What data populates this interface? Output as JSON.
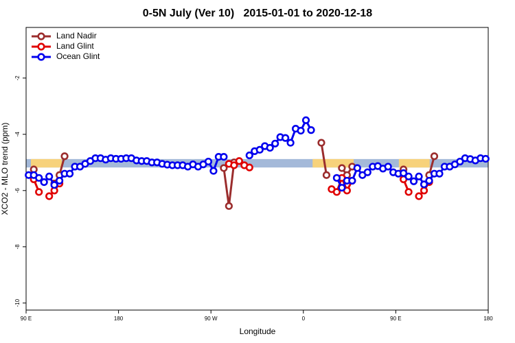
{
  "chart_data": {
    "type": "line",
    "title": "0-5N July (Ver 10)   2015-01-01 to 2020-12-18",
    "x_label": "Longitude",
    "y_label": "XCO2 - MLO trend (ppm)",
    "xlim": [
      90,
      540
    ],
    "ylim": [
      -10.25,
      -0.2
    ],
    "xticks": [
      {
        "value": 90,
        "label": "90 E"
      },
      180,
      {
        "value": 270,
        "label": "90 W"
      },
      {
        "value": 360,
        "label": "0"
      },
      {
        "value": 450,
        "label": "90 E"
      },
      {
        "value": 540,
        "label": "180"
      }
    ],
    "yticks": [
      -10,
      -8,
      -6,
      -4,
      -2
    ],
    "legend": "top-left",
    "band": {
      "range": [
        -5.18,
        -4.88
      ],
      "color": "#a4b9d9",
      "highlight_color": "#f7d27b",
      "highlights": [
        [
          94.7,
          124.8
        ],
        [
          369,
          409
        ],
        [
          453,
          483
        ]
      ]
    },
    "x": [
      92.5,
      97.5,
      102.5,
      107.5,
      112.5,
      117.5,
      122.5,
      127.5,
      132.5,
      137.5,
      142.5,
      147.5,
      152.5,
      157.5,
      162.5,
      167.5,
      172.5,
      177.5,
      182.5,
      187.5,
      192.5,
      197.5,
      202.5,
      207.5,
      212.5,
      217.5,
      222.5,
      227.5,
      232.5,
      237.5,
      242.5,
      247.5,
      252.5,
      257.5,
      262.5,
      267.5,
      272.5,
      277.5,
      282.5,
      287.5,
      292.5,
      297.5,
      302.5,
      307.5,
      312.5,
      317.5,
      322.5,
      327.5,
      332.5,
      337.5,
      342.5,
      347.5,
      352.5,
      357.5,
      362.5,
      367.5,
      372.5,
      377.5,
      382.5,
      387.5,
      392.5,
      397.5,
      402.5,
      407.5,
      412.5,
      417.5,
      422.5,
      427.5,
      432.5,
      437.5,
      442.5,
      447.5,
      452.5,
      457.5,
      462.5,
      467.5,
      472.5,
      477.5,
      482.5,
      487.5,
      492.5,
      497.5,
      502.5,
      507.5,
      512.5,
      517.5,
      522.5,
      527.5,
      532.5,
      537.5
    ],
    "series": [
      {
        "name": "Land Nadir",
        "color": "#9b2d2d",
        "values": [
          null,
          -5.25,
          null,
          null,
          null,
          -5.75,
          -5.45,
          -4.78,
          null,
          null,
          null,
          null,
          null,
          null,
          null,
          null,
          null,
          null,
          null,
          null,
          null,
          null,
          null,
          null,
          null,
          null,
          null,
          null,
          null,
          null,
          null,
          null,
          null,
          null,
          null,
          null,
          null,
          null,
          -5.2,
          -6.55,
          -5.0,
          null,
          null,
          null,
          null,
          null,
          null,
          null,
          null,
          null,
          null,
          null,
          null,
          null,
          null,
          null,
          null,
          -4.3,
          -5.45,
          null,
          null,
          -5.2,
          -5.45,
          -5.15,
          null,
          null,
          null,
          null,
          null,
          null,
          null,
          null,
          null,
          -5.25,
          null,
          null,
          null,
          null,
          -5.45,
          -4.78,
          null,
          null,
          null,
          null,
          null,
          null,
          null,
          null,
          null,
          null
        ]
      },
      {
        "name": "Land Glint",
        "color": "#e00000",
        "values": [
          null,
          -5.6,
          -6.05,
          null,
          -6.2,
          -6.0,
          -5.75,
          null,
          null,
          null,
          null,
          null,
          null,
          null,
          null,
          null,
          null,
          null,
          null,
          null,
          null,
          null,
          null,
          null,
          null,
          null,
          null,
          null,
          null,
          null,
          null,
          null,
          null,
          null,
          null,
          null,
          null,
          null,
          null,
          -5.05,
          -5.1,
          -4.95,
          -5.1,
          -5.18,
          null,
          null,
          null,
          null,
          null,
          null,
          null,
          null,
          null,
          null,
          null,
          null,
          null,
          null,
          null,
          -5.95,
          -6.05,
          -5.55,
          -6.0,
          -5.65,
          null,
          null,
          null,
          null,
          null,
          null,
          null,
          null,
          null,
          -5.6,
          -6.05,
          null,
          -6.2,
          -6.0,
          -5.7,
          null,
          null,
          null,
          null,
          null,
          null,
          null,
          null,
          null,
          null,
          null
        ]
      },
      {
        "name": "Ocean Glint",
        "color": "#0000ee",
        "values": [
          -5.45,
          -5.45,
          -5.55,
          -5.7,
          -5.5,
          -5.8,
          -5.65,
          -5.4,
          -5.4,
          -5.15,
          -5.15,
          -5.05,
          -4.95,
          -4.85,
          -4.85,
          -4.9,
          -4.85,
          -4.87,
          -4.87,
          -4.85,
          -4.85,
          -4.93,
          -4.95,
          -4.95,
          -5.0,
          -5.0,
          -5.05,
          -5.08,
          -5.1,
          -5.1,
          -5.1,
          -5.15,
          -5.07,
          -5.15,
          -5.07,
          -4.97,
          -5.3,
          -4.8,
          -4.8,
          null,
          null,
          null,
          null,
          -4.75,
          -4.6,
          -4.55,
          -4.42,
          -4.48,
          -4.33,
          -4.1,
          -4.13,
          -4.3,
          -3.8,
          -3.87,
          -3.5,
          -3.85,
          null,
          null,
          null,
          null,
          -5.55,
          -5.9,
          -5.65,
          -5.65,
          -5.2,
          -5.45,
          -5.35,
          -5.15,
          -5.13,
          -5.22,
          -5.15,
          -5.35,
          -5.4,
          -5.38,
          -5.5,
          -5.67,
          -5.5,
          -5.78,
          -5.65,
          -5.4,
          -5.4,
          -5.15,
          -5.15,
          -5.07,
          -4.97,
          -4.85,
          -4.88,
          -4.93,
          -4.85,
          -4.87
        ]
      }
    ]
  }
}
